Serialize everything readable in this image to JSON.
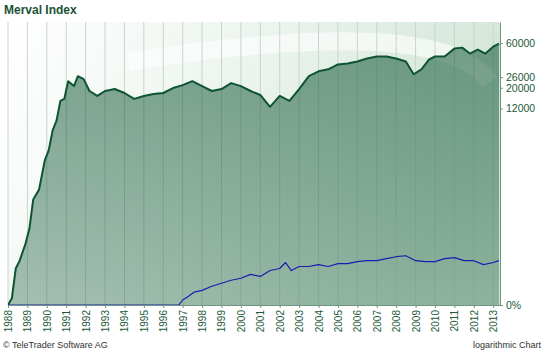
{
  "chart_data": {
    "type": "line",
    "title": "Merval Index",
    "annotations": [
      "© TeleTrader Software AG",
      "logarithmic Chart"
    ],
    "log": "y",
    "grid": true,
    "xlim": [
      1988,
      2013.35
    ],
    "xticks": [
      1988,
      1989,
      1990,
      1991,
      1992,
      1993,
      1994,
      1995,
      1996,
      1997,
      1998,
      1999,
      2000,
      2001,
      2002,
      2003,
      2004,
      2005,
      2006,
      2007,
      2008,
      2009,
      2010,
      2011,
      2012,
      2013
    ],
    "ylim": [
      0,
      100000
    ],
    "yticks": [
      26000,
      12000,
      60000,
      20000,
      {
        "value": 0,
        "label": "0%"
      }
    ],
    "series": [
      {
        "type": "area",
        "color": "#0e5433",
        "x": [
          1988.0,
          1988.2,
          1988.4,
          1988.6,
          1988.9,
          1989.1,
          1989.3,
          1989.6,
          1989.9,
          1990.1,
          1990.3,
          1990.5,
          1990.7,
          1990.9,
          1991.1,
          1991.4,
          1991.6,
          1991.9,
          1992.2,
          1992.6,
          1993.0,
          1993.5,
          1994.0,
          1994.5,
          1995.0,
          1995.5,
          1996.0,
          1996.5,
          1997.0,
          1997.5,
          1998.0,
          1998.5,
          1999.0,
          1999.5,
          2000.0,
          2000.5,
          2001.0,
          2001.5,
          2002.0,
          2002.5,
          2003.0,
          2003.5,
          2004.0,
          2004.5,
          2005.0,
          2005.5,
          2006.0,
          2006.5,
          2007.0,
          2007.5,
          2008.0,
          2008.5,
          2008.9,
          2009.3,
          2009.7,
          2010.0,
          2010.5,
          2011.0,
          2011.4,
          2011.8,
          2012.2,
          2012.6,
          2013.0,
          2013.3
        ],
        "values": [
          0,
          18,
          144,
          195,
          345,
          538,
          1214,
          1572,
          3342,
          4280,
          6987,
          8917,
          14490,
          15210,
          23520,
          20840,
          26540,
          24690,
          18470,
          16360,
          18470,
          19380,
          17590,
          15210,
          16360,
          17170,
          17590,
          19850,
          21350,
          23520,
          20840,
          18470,
          19380,
          22410,
          20840,
          18470,
          16760,
          12530,
          16360,
          14490,
          19380,
          26540,
          29950,
          31430,
          35460,
          36330,
          38120,
          40990,
          43010,
          43010,
          40990,
          38120,
          27850,
          31430,
          40010,
          43010,
          43010,
          52170,
          53440,
          46250,
          50930,
          46250,
          54740,
          58850
        ]
      },
      {
        "type": "line",
        "color": "#1c1cb0",
        "x": [
          1988,
          1996.8,
          1997.0,
          1997.3,
          1997.6,
          1998.0,
          1998.5,
          1999.0,
          1999.5,
          2000.0,
          2000.5,
          2001.0,
          2001.5,
          2002.0,
          2002.3,
          2002.6,
          2003.0,
          2003.5,
          2004.0,
          2004.5,
          2005.0,
          2005.5,
          2006.0,
          2006.5,
          2007.0,
          2007.5,
          2008.0,
          2008.5,
          2009.0,
          2009.5,
          2010.0,
          2010.5,
          2011.0,
          2011.5,
          2012.0,
          2012.5,
          2013.0,
          2013.3
        ],
        "values": [
          0,
          0,
          13,
          24,
          37,
          43,
          58,
          70,
          83,
          92,
          111,
          101,
          132,
          144,
          182,
          132,
          156,
          156,
          168,
          156,
          175,
          175,
          188,
          195,
          195,
          210,
          225,
          233,
          195,
          188,
          188,
          210,
          218,
          195,
          195,
          168,
          182,
          195
        ]
      }
    ]
  }
}
